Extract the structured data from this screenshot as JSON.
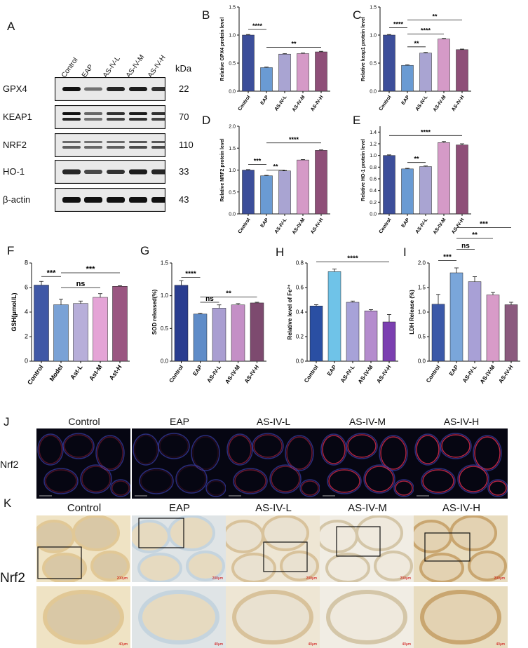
{
  "panel_letters": {
    "A": "A",
    "B": "B",
    "C": "C",
    "D": "D",
    "E": "E",
    "F": "F",
    "G": "G",
    "H": "H",
    "I": "I",
    "J": "J",
    "K": "K"
  },
  "western_blot": {
    "lanes": [
      "Control",
      "EAP",
      "AS-IV-L",
      "AS-IV-M",
      "AS-IV-H"
    ],
    "unit": "kDa",
    "rows": [
      {
        "label": "GPX4",
        "kda": "22"
      },
      {
        "label": "KEAP1",
        "kda": "70"
      },
      {
        "label": "NRF2",
        "kda": "110"
      },
      {
        "label": "HO-1",
        "kda": "33"
      },
      {
        "label": "β-actin",
        "kda": "43"
      }
    ]
  },
  "colors": {
    "dark_blue": "#3c4e9a",
    "light_blue": "#6a9bd3",
    "lavender": "#a9a4d2",
    "pink": "#d59ac7",
    "plum": "#8e4f78",
    "F_colors": [
      "#4058a6",
      "#7aa2d6",
      "#b7aed9",
      "#e4a4d6",
      "#9a5681"
    ],
    "G_colors": [
      "#2a3d8f",
      "#5f8cc8",
      "#a99ed1",
      "#c48fc6",
      "#7d4a6f"
    ],
    "H_colors": [
      "#2a4fa3",
      "#6fc3e8",
      "#a7a2d8",
      "#b48ccd",
      "#7b3fb0"
    ],
    "I_colors": [
      "#3b58a8",
      "#7aa6da",
      "#a8a0d6",
      "#d89bc8",
      "#8b5a7e"
    ]
  },
  "chart_data": [
    {
      "id": "B",
      "type": "bar",
      "categories": [
        "Control",
        "EAP",
        "AS-IV-L",
        "AS-IV-M",
        "AS-IV-H"
      ],
      "values": [
        1.0,
        0.42,
        0.66,
        0.67,
        0.7
      ],
      "errors": [
        0.01,
        0.01,
        0.01,
        0.01,
        0.01
      ],
      "ylabel": "Relative GPX4 protein level",
      "ylim": [
        0,
        1.5
      ],
      "yticks": [
        "0.0",
        "0.5",
        "1.0",
        "1.5"
      ],
      "ytick_values": [
        0,
        0.5,
        1.0,
        1.5
      ],
      "sig": [
        {
          "from": 0,
          "to": 1,
          "label": "****",
          "level": 1.1
        },
        {
          "from": 1,
          "to": 4,
          "label": "**",
          "level": 0.78
        }
      ]
    },
    {
      "id": "C",
      "type": "bar",
      "categories": [
        "Control",
        "EAP",
        "AS-IV-L",
        "AS-IV-M",
        "AS-IV-H"
      ],
      "values": [
        1.0,
        0.46,
        0.68,
        0.93,
        0.74
      ],
      "errors": [
        0.01,
        0.01,
        0.01,
        0.01,
        0.01
      ],
      "ylabel": "Relative keap1 protein level",
      "ylim": [
        0,
        1.5
      ],
      "yticks": [
        "0.0",
        "0.5",
        "1.0",
        "1.5"
      ],
      "ytick_values": [
        0,
        0.5,
        1.0,
        1.5
      ],
      "sig": [
        {
          "from": 0,
          "to": 1,
          "label": "****",
          "level": 1.13
        },
        {
          "from": 1,
          "to": 2,
          "label": "**",
          "level": 0.79
        },
        {
          "from": 1,
          "to": 3,
          "label": "****",
          "level": 1.02
        },
        {
          "from": 1,
          "to": 4,
          "label": "**",
          "level": 1.27
        }
      ]
    },
    {
      "id": "D",
      "type": "bar",
      "categories": [
        "Control",
        "EAP",
        "AS-IV-L",
        "AS-IV-M",
        "AS-IV-H"
      ],
      "values": [
        1.0,
        0.87,
        0.98,
        1.23,
        1.45
      ],
      "errors": [
        0.01,
        0.01,
        0.01,
        0.01,
        0.01
      ],
      "ylabel": "Relative NRF2 protein level",
      "ylim": [
        0,
        2.0
      ],
      "yticks": [
        "0.0",
        "0.5",
        "1.0",
        "1.5",
        "2.0"
      ],
      "ytick_values": [
        0,
        0.5,
        1.0,
        1.5,
        2.0
      ],
      "sig": [
        {
          "from": 0,
          "to": 1,
          "label": "***",
          "level": 1.13
        },
        {
          "from": 1,
          "to": 2,
          "label": "**",
          "level": 1.0
        },
        {
          "from": 1,
          "to": 4,
          "label": "****",
          "level": 1.62
        }
      ]
    },
    {
      "id": "E",
      "type": "bar",
      "categories": [
        "Control",
        "EAP",
        "AS-IV-L",
        "AS-IV-M",
        "AS-IV-H"
      ],
      "values": [
        1.0,
        0.77,
        0.81,
        1.22,
        1.18
      ],
      "errors": [
        0.01,
        0.01,
        0.01,
        0.02,
        0.02
      ],
      "ylabel": "Relative HO-1 protein level",
      "ylim": [
        0,
        1.5
      ],
      "yticks": [
        "0.0",
        "0.2",
        "0.4",
        "0.6",
        "0.8",
        "1.0",
        "1.2",
        "1.4"
      ],
      "ytick_values": [
        0,
        0.2,
        0.4,
        0.6,
        0.8,
        1.0,
        1.2,
        1.4
      ],
      "sig": [
        {
          "from": 1,
          "to": 2,
          "label": "**",
          "level": 0.88
        },
        {
          "from": 0,
          "to": 4,
          "label": "****",
          "level": 1.34
        }
      ]
    },
    {
      "id": "F",
      "type": "bar",
      "categories": [
        "Control",
        "Model",
        "Ast-L",
        "Ast-M",
        "Ast-H"
      ],
      "values": [
        6.2,
        4.6,
        4.7,
        5.2,
        6.1
      ],
      "errors": [
        0.3,
        0.45,
        0.2,
        0.3,
        0.05
      ],
      "ylabel": "GSH(μmol/L)",
      "ylim": [
        0,
        8
      ],
      "yticks": [
        "0",
        "2",
        "4",
        "6",
        "8"
      ],
      "ytick_values": [
        0,
        2,
        4,
        6,
        8
      ],
      "sig": [
        {
          "from": 0,
          "to": 1,
          "label": "***",
          "level": 6.9
        },
        {
          "from": 1,
          "to": 3,
          "label": "ns",
          "level": 6.0
        },
        {
          "from": 1,
          "to": 4,
          "label": "***",
          "level": 7.2
        }
      ]
    },
    {
      "id": "G",
      "type": "bar",
      "categories": [
        "Control",
        "EAP",
        "AS-IV-L",
        "AS-IV-M",
        "AS-IV-H"
      ],
      "values": [
        1.16,
        0.72,
        0.81,
        0.86,
        0.89
      ],
      "errors": [
        0.07,
        0.01,
        0.05,
        0.02,
        0.01
      ],
      "ylabel": "SOD released(%)",
      "ylim": [
        0,
        1.5
      ],
      "yticks": [
        "0.0",
        "0.5",
        "1.0",
        "1.5"
      ],
      "ytick_values": [
        0,
        0.5,
        1.0,
        1.5
      ],
      "sig": [
        {
          "from": 0,
          "to": 1,
          "label": "****",
          "level": 1.28
        },
        {
          "from": 1,
          "to": 2,
          "label": "ns",
          "level": 0.9
        },
        {
          "from": 1,
          "to": 4,
          "label": "**",
          "level": 0.98
        }
      ]
    },
    {
      "id": "H",
      "type": "bar",
      "categories": [
        "Control",
        "EAP",
        "AS-IV-L",
        "AS-IV-M",
        "AS-IV-H"
      ],
      "values": [
        0.45,
        0.73,
        0.48,
        0.41,
        0.32
      ],
      "errors": [
        0.01,
        0.02,
        0.01,
        0.01,
        0.06
      ],
      "ylabel": "Relative level of Fe²⁺",
      "ylim": [
        0,
        0.8
      ],
      "yticks": [
        "0.0",
        "0.2",
        "0.4",
        "0.6",
        "0.8"
      ],
      "ytick_values": [
        0,
        0.2,
        0.4,
        0.6,
        0.8
      ],
      "sig": [
        {
          "from": 0,
          "to": 4,
          "label": "****",
          "level": 0.81
        }
      ]
    },
    {
      "id": "I",
      "type": "bar",
      "categories": [
        "Control",
        "EAP",
        "AS-IV-L",
        "AS-IV-M",
        "AS-IV-H"
      ],
      "values": [
        1.16,
        1.8,
        1.62,
        1.35,
        1.15
      ],
      "errors": [
        0.2,
        0.1,
        0.1,
        0.05,
        0.05
      ],
      "ylabel": "LDH Release (%)",
      "ylim": [
        0,
        2.0
      ],
      "yticks": [
        "0.0",
        "0.5",
        "1.0",
        "1.5",
        "2.0"
      ],
      "ytick_values": [
        0,
        0.5,
        1.0,
        1.5,
        2.0
      ],
      "sig": [
        {
          "from": 0,
          "to": 1,
          "label": "***",
          "level": 2.05
        },
        {
          "from": 1,
          "to": 2,
          "label": "ns",
          "level": 2.28
        },
        {
          "from": 1,
          "to": 3,
          "label": "**",
          "level": 2.5
        },
        {
          "from": 1,
          "to": 4,
          "label": "***",
          "level": 2.72
        }
      ]
    }
  ],
  "fluorescence": {
    "row_label": "Nrf2",
    "columns": [
      "Control",
      "EAP",
      "AS-IV-L",
      "AS-IV-M",
      "AS-IV-H"
    ]
  },
  "ihc": {
    "row_label": "Nrf2",
    "columns": [
      "Control",
      "EAP",
      "AS-IV-L",
      "AS-IV-M",
      "AS-IV-H"
    ],
    "scale_top": "200μm",
    "scale_bottom": "40μm"
  }
}
